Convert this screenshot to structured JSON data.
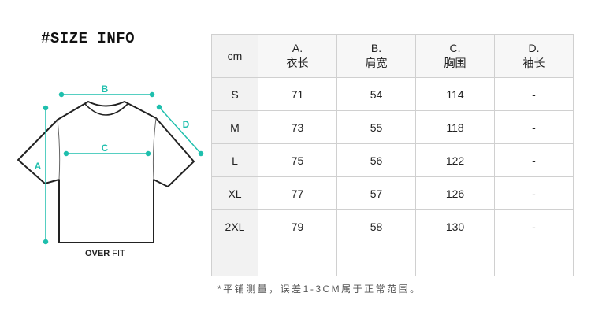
{
  "title": "#SIZE INFO",
  "diagram": {
    "labels": {
      "a": "A",
      "b": "B",
      "c": "C",
      "d": "D"
    },
    "fit_bold": "OVER",
    "fit_regular": "FIT",
    "accent": "#1fbfad"
  },
  "table": {
    "header": [
      {
        "top": "",
        "bottom": "cm"
      },
      {
        "top": "A.",
        "bottom": "衣长"
      },
      {
        "top": "B.",
        "bottom": "肩宽"
      },
      {
        "top": "C.",
        "bottom": "胸围"
      },
      {
        "top": "D.",
        "bottom": "袖长"
      }
    ],
    "rows": [
      [
        "S",
        "71",
        "54",
        "114",
        "-"
      ],
      [
        "M",
        "73",
        "55",
        "118",
        "-"
      ],
      [
        "L",
        "75",
        "56",
        "122",
        "-"
      ],
      [
        "XL",
        "77",
        "57",
        "126",
        "-"
      ],
      [
        "2XL",
        "79",
        "58",
        "130",
        "-"
      ],
      [
        "",
        "",
        "",
        "",
        ""
      ]
    ]
  },
  "note": "*平铺测量，误差1-3CM属于正常范围。"
}
